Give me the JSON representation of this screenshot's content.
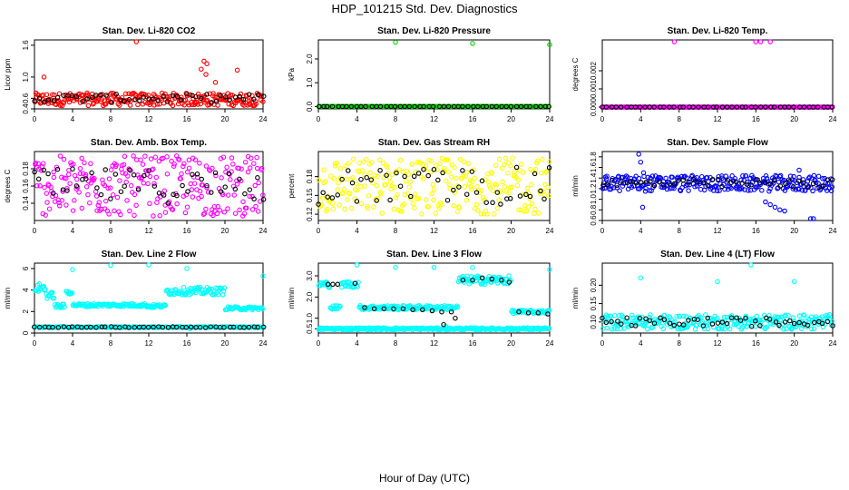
{
  "title": "HDP_101215  Std. Dev. Diagnostics",
  "xlabel": "Hour of Day (UTC)",
  "chart_data": [
    {
      "type": "scatter",
      "title": "Stan. Dev. Li-820 CO2",
      "ylabel": "Licor ppm",
      "xlim": [
        0,
        24
      ],
      "ylim": [
        0.4,
        1.7
      ],
      "xticks": [
        "0",
        "4",
        "8",
        "12",
        "16",
        "20",
        "24"
      ],
      "yticks": [
        {
          "v": 0.4,
          "label": "0.4"
        },
        {
          "v": 0.6,
          "label": "0.6"
        },
        {
          "v": 1.0,
          "label": "1.0"
        },
        {
          "v": 1.6,
          "label": "1.6"
        }
      ],
      "color": "#ff0000",
      "series": [
        {
          "name": "band",
          "color": "#ff0000",
          "base": 0.58,
          "spread": 0.12
        },
        {
          "name": "outliers",
          "color": "#ff0000",
          "points": [
            [
              10.7,
              1.67
            ],
            [
              1.0,
              1.0
            ],
            [
              17.8,
              1.3
            ],
            [
              18.1,
              1.25
            ],
            [
              17.5,
              1.15
            ],
            [
              18.0,
              1.05
            ],
            [
              21.3,
              1.13
            ],
            [
              19.0,
              0.9
            ]
          ]
        },
        {
          "name": "hourly",
          "color": "#000000",
          "base": 0.6,
          "spread": 0.08
        }
      ]
    },
    {
      "type": "scatter",
      "title": "Stan. Dev. Li-820 Pressure",
      "ylabel": "kPa",
      "xlim": [
        0,
        24
      ],
      "ylim": [
        -0.1,
        2.8
      ],
      "xticks": [
        "0",
        "4",
        "8",
        "12",
        "16",
        "20",
        "24"
      ],
      "yticks": [
        {
          "v": 0.0,
          "label": "0.0"
        },
        {
          "v": 1.0,
          "label": "1.0"
        },
        {
          "v": 2.0,
          "label": "2.0"
        }
      ],
      "color": "#00cc00",
      "series": [
        {
          "name": "band",
          "color": "#00cc00",
          "base": 0.0,
          "spread": 0.0
        },
        {
          "name": "outliers",
          "color": "#00cc00",
          "points": [
            [
              8.0,
              2.7
            ],
            [
              16.0,
              2.65
            ],
            [
              24.0,
              2.6
            ]
          ]
        },
        {
          "name": "hourly",
          "color": "#000000",
          "base": 0.0,
          "spread": 0.0
        }
      ]
    },
    {
      "type": "scatter",
      "title": "Stan. Dev. Li-820 Temp.",
      "ylabel": "degrees C",
      "xlim": [
        0,
        24
      ],
      "ylim": [
        -0.0001,
        0.0037
      ],
      "xticks": [
        "0",
        "4",
        "8",
        "12",
        "16",
        "20",
        "24"
      ],
      "yticks": [
        {
          "v": 0.0,
          "label": "0.000"
        },
        {
          "v": 0.001,
          "label": "0.001"
        },
        {
          "v": 0.002,
          "label": "0.002"
        }
      ],
      "color": "#ff00ff",
      "series": [
        {
          "name": "band",
          "color": "#ff00ff",
          "base": 0.0,
          "spread": 0.0
        },
        {
          "name": "outliers",
          "color": "#ff00ff",
          "points": [
            [
              7.5,
              0.0037
            ],
            [
              16.0,
              0.0037
            ],
            [
              16.5,
              0.0037
            ],
            [
              17.5,
              0.0037
            ]
          ]
        },
        {
          "name": "hourly",
          "color": "#000000",
          "base": 0.0,
          "spread": 0.0
        }
      ]
    },
    {
      "type": "scatter",
      "title": "Stan. Dev. Amb. Box Temp.",
      "ylabel": "degrees C",
      "xlim": [
        0,
        24
      ],
      "ylim": [
        0.12,
        0.2
      ],
      "xticks": [
        "0",
        "4",
        "8",
        "12",
        "16",
        "20",
        "24"
      ],
      "yticks": [
        {
          "v": 0.14,
          "label": "0.14"
        },
        {
          "v": 0.16,
          "label": "0.16"
        },
        {
          "v": 0.18,
          "label": "0.18"
        }
      ],
      "color": "#ff00ff",
      "series": [
        {
          "name": "band",
          "color": "#ff00ff",
          "base": 0.16,
          "spread": 0.035
        },
        {
          "name": "outliers",
          "color": "#ff00ff",
          "points": []
        },
        {
          "name": "hourly",
          "color": "#000000",
          "base": 0.16,
          "spread": 0.02
        }
      ]
    },
    {
      "type": "scatter",
      "title": "Stan. Dev. Gas Stream RH",
      "ylabel": "percent",
      "xlim": [
        0,
        24
      ],
      "ylim": [
        0.11,
        0.22
      ],
      "xticks": [
        "0",
        "4",
        "8",
        "12",
        "16",
        "20",
        "24"
      ],
      "yticks": [
        {
          "v": 0.12,
          "label": "0.12"
        },
        {
          "v": 0.15,
          "label": "0.15"
        },
        {
          "v": 0.18,
          "label": "0.18"
        }
      ],
      "color": "#ffff00",
      "series": [
        {
          "name": "band",
          "color": "#ffff00",
          "base": 0.165,
          "spread": 0.045
        },
        {
          "name": "outliers",
          "color": "#ffff00",
          "points": []
        },
        {
          "name": "hourly",
          "color": "#000000",
          "base": 0.165,
          "spread": 0.03
        }
      ]
    },
    {
      "type": "scatter",
      "title": "Stan. Dev. Sample Flow",
      "ylabel": "ml/min",
      "xlim": [
        0,
        24
      ],
      "ylim": [
        0.6,
        1.9
      ],
      "xticks": [
        "0",
        "4",
        "8",
        "12",
        "16",
        "20",
        "24"
      ],
      "yticks": [
        {
          "v": 0.6,
          "label": "0.6"
        },
        {
          "v": 0.8,
          "label": "0.8"
        },
        {
          "v": 1.0,
          "label": "1.0"
        },
        {
          "v": 1.2,
          "label": "1.2"
        },
        {
          "v": 1.4,
          "label": "1.4"
        },
        {
          "v": 1.6,
          "label": "1.6"
        },
        {
          "v": 1.8,
          "label": "1.8"
        }
      ],
      "color": "#0000ff",
      "series": [
        {
          "name": "band",
          "color": "#0000ff",
          "base": 1.3,
          "spread": 0.15
        },
        {
          "name": "outliers",
          "color": "#0000ff",
          "points": [
            [
              3.8,
              1.85
            ],
            [
              4.0,
              1.7
            ],
            [
              4.3,
              1.5
            ],
            [
              4.2,
              0.85
            ],
            [
              17.0,
              0.95
            ],
            [
              17.5,
              0.9
            ],
            [
              18.0,
              0.85
            ],
            [
              18.5,
              0.8
            ],
            [
              19.0,
              0.78
            ],
            [
              21.7,
              0.63
            ],
            [
              22.0,
              0.62
            ],
            [
              20.5,
              1.55
            ]
          ]
        },
        {
          "name": "hourly",
          "color": "#000000",
          "base": 1.3,
          "spread": 0.08
        }
      ]
    },
    {
      "type": "scatter",
      "title": "Stan. Dev. Line 2 Flow",
      "ylabel": "ml/min",
      "xlim": [
        0,
        24
      ],
      "ylim": [
        0,
        6.5
      ],
      "xticks": [
        "0",
        "4",
        "8",
        "12",
        "16",
        "20",
        "24"
      ],
      "yticks": [
        {
          "v": 0,
          "label": "0"
        },
        {
          "v": 2,
          "label": "2"
        },
        {
          "v": 4,
          "label": "4"
        },
        {
          "v": 6,
          "label": "6"
        }
      ],
      "color": "#00ffff",
      "segments": [
        [
          0,
          1.2,
          4.2,
          0.4
        ],
        [
          1.2,
          2.1,
          3.5,
          0.3
        ],
        [
          2.1,
          3.2,
          2.5,
          0.2
        ],
        [
          3.3,
          4.0,
          3.8,
          0.2
        ],
        [
          4.0,
          11.8,
          2.6,
          0.15
        ],
        [
          11.8,
          13.8,
          2.5,
          0.15
        ],
        [
          13.8,
          20.0,
          3.9,
          0.35
        ],
        [
          20.0,
          24.0,
          2.3,
          0.15
        ],
        [
          0,
          24,
          0.55,
          0.05
        ]
      ],
      "series": [
        {
          "name": "outliers",
          "color": "#00ffff",
          "points": [
            [
              4.0,
              5.9
            ],
            [
              8.0,
              6.3
            ],
            [
              12.0,
              6.4
            ],
            [
              16.0,
              6.0
            ],
            [
              24.0,
              5.3
            ],
            [
              16.3,
              0.4
            ],
            [
              17.8,
              0.6
            ]
          ]
        },
        {
          "name": "hourly",
          "color": "#000000",
          "base": 0.55,
          "spread": 0.04
        }
      ]
    },
    {
      "type": "scatter",
      "title": "Stan. Dev. Line 3 Flow",
      "ylabel": "ml/min",
      "xlim": [
        0,
        24
      ],
      "ylim": [
        0.3,
        3.6
      ],
      "xticks": [
        "0",
        "4",
        "8",
        "12",
        "16",
        "20",
        "24"
      ],
      "yticks": [
        {
          "v": 0.5,
          "label": "0.5"
        },
        {
          "v": 1.0,
          "label": "1.0"
        },
        {
          "v": 2.0,
          "label": "2.0"
        },
        {
          "v": 3.0,
          "label": "3.0"
        }
      ],
      "color": "#00ffff",
      "segments": [
        [
          0,
          1.2,
          2.6,
          0.15
        ],
        [
          1.2,
          2.3,
          1.5,
          0.1
        ],
        [
          2.3,
          4.2,
          2.6,
          0.15
        ],
        [
          4.2,
          14.5,
          1.5,
          0.1
        ],
        [
          14.5,
          20.0,
          2.8,
          0.2
        ],
        [
          20.0,
          24.0,
          1.3,
          0.08
        ],
        [
          0,
          24,
          0.5,
          0.05
        ]
      ],
      "series": [
        {
          "name": "outliers",
          "color": "#00ffff",
          "points": [
            [
              4.0,
              3.55
            ],
            [
              8.0,
              3.4
            ],
            [
              12.0,
              3.4
            ],
            [
              16.0,
              3.4
            ],
            [
              24.0,
              3.3
            ],
            [
              13.2,
              0.62
            ]
          ]
        },
        {
          "name": "hourly-mid",
          "color": "#000000",
          "points": [
            [
              1.0,
              2.6
            ],
            [
              1.5,
              2.6
            ],
            [
              2.0,
              2.6
            ],
            [
              3.8,
              2.65
            ],
            [
              4.8,
              1.5
            ],
            [
              5.8,
              1.45
            ],
            [
              6.8,
              1.45
            ],
            [
              7.8,
              1.45
            ],
            [
              8.8,
              1.45
            ],
            [
              9.8,
              1.4
            ],
            [
              10.8,
              1.4
            ],
            [
              11.8,
              1.35
            ],
            [
              12.8,
              1.3
            ],
            [
              13.8,
              1.3
            ],
            [
              14.2,
              1.0
            ],
            [
              15.0,
              2.8
            ],
            [
              16.0,
              2.8
            ],
            [
              17.0,
              2.9
            ],
            [
              18.0,
              2.85
            ],
            [
              19.0,
              2.8
            ],
            [
              19.8,
              2.7
            ],
            [
              20.8,
              1.3
            ],
            [
              21.8,
              1.25
            ],
            [
              22.8,
              1.25
            ],
            [
              23.8,
              1.2
            ],
            [
              13.0,
              0.7
            ]
          ]
        }
      ]
    },
    {
      "type": "scatter",
      "title": "Stan. Dev. Line 4 (LT) Flow",
      "ylabel": "ml/min",
      "xlim": [
        0,
        24
      ],
      "ylim": [
        0.07,
        0.26
      ],
      "xticks": [
        "0",
        "4",
        "8",
        "12",
        "16",
        "20",
        "24"
      ],
      "yticks": [
        {
          "v": 0.1,
          "label": "0.10"
        },
        {
          "v": 0.15,
          "label": "0.15"
        },
        {
          "v": 0.2,
          "label": "0.20"
        }
      ],
      "color": "#00ffff",
      "series": [
        {
          "name": "band",
          "color": "#00ffff",
          "base": 0.1,
          "spread": 0.02
        },
        {
          "name": "outliers",
          "color": "#00ffff",
          "points": [
            [
              4.0,
              0.22
            ],
            [
              12.0,
              0.21
            ],
            [
              15.5,
              0.26
            ],
            [
              20.0,
              0.21
            ]
          ]
        },
        {
          "name": "hourly",
          "color": "#000000",
          "base": 0.1,
          "spread": 0.012
        }
      ]
    }
  ]
}
